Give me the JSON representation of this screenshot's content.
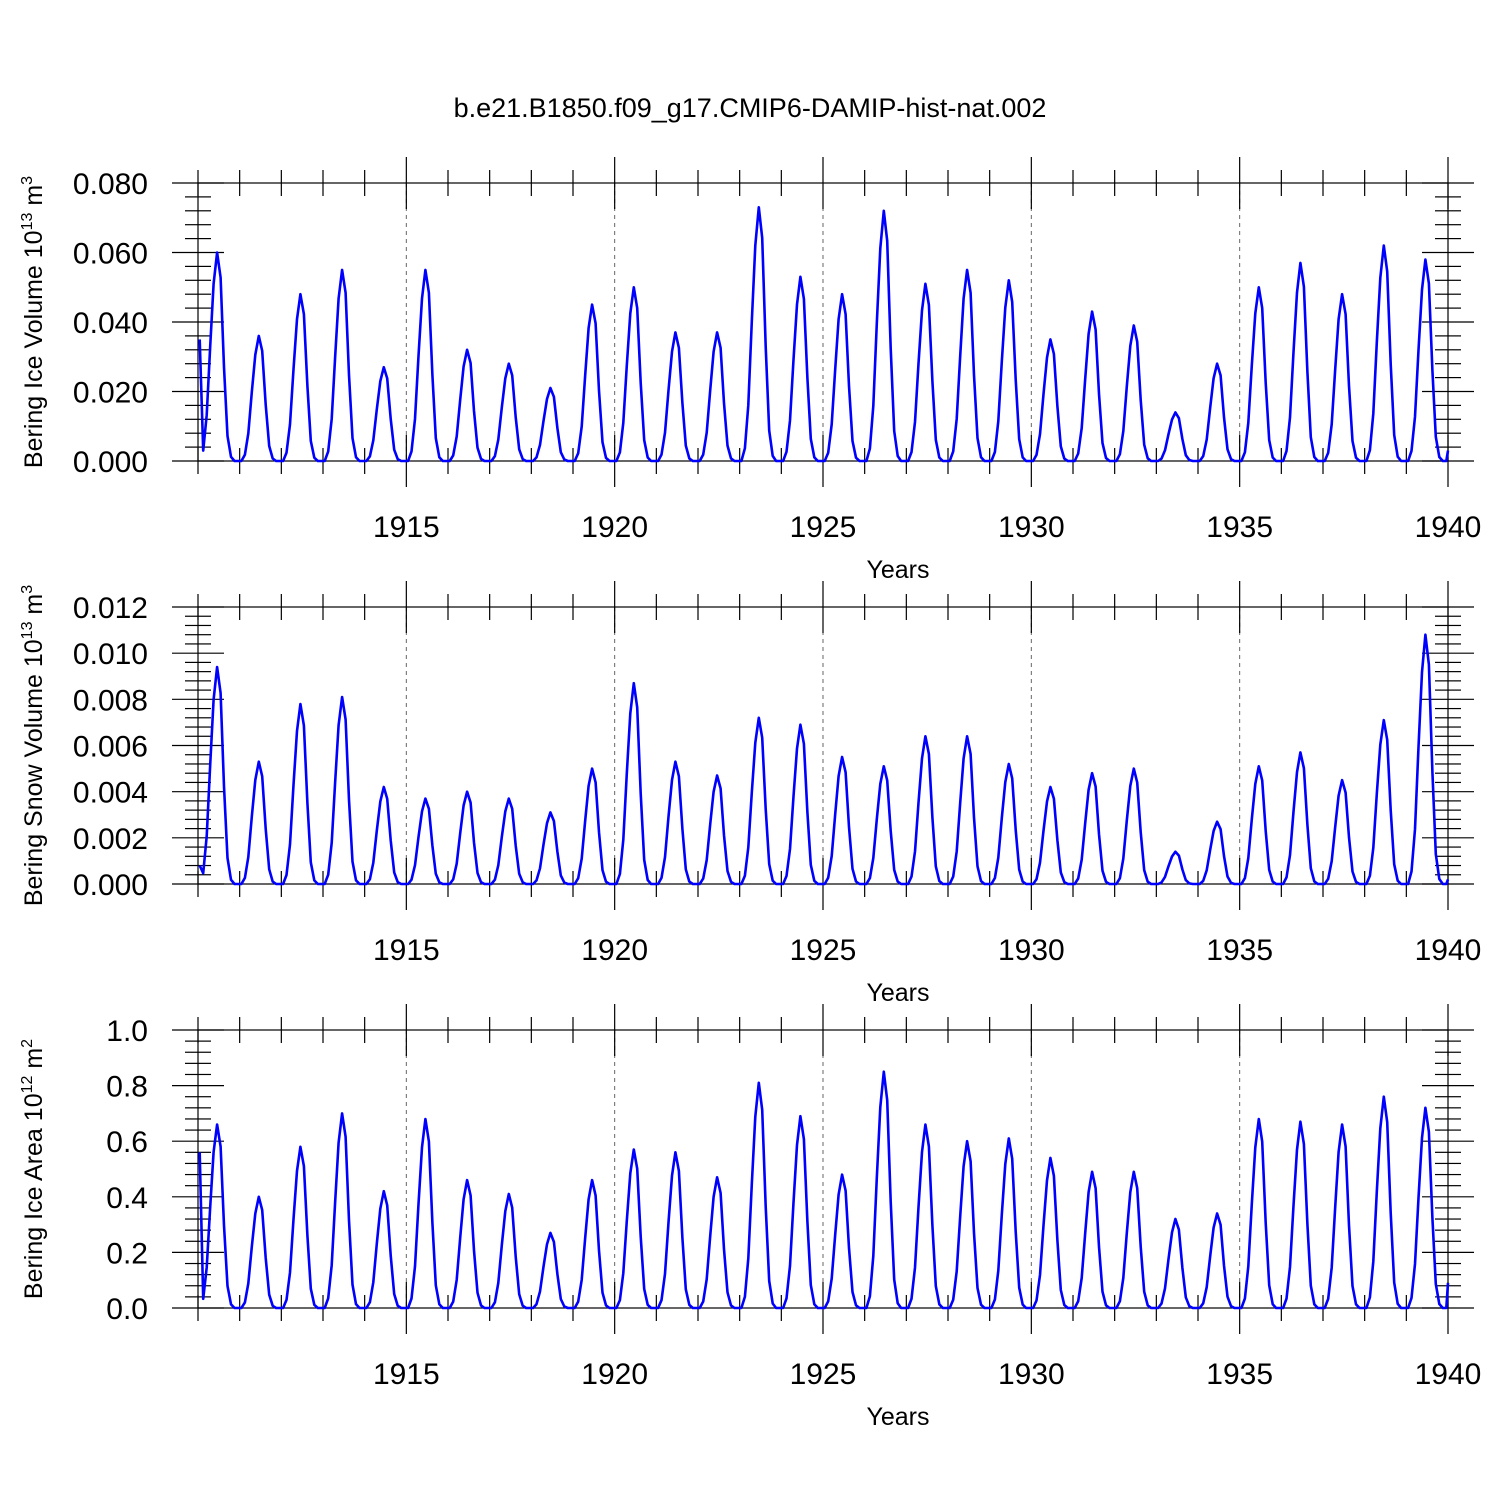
{
  "chart_data": {
    "type": "line",
    "title": "b.e21.B1850.f09_g17.CMIP6-DAMIP-hist-nat.002",
    "panels": [
      {
        "id": "ice-volume",
        "ylabel": {
          "prefix": "Bering Ice Volume 10",
          "exp": "13",
          "unit": " m",
          "unit_exp": "3"
        },
        "xlabel": "Years",
        "xlim": [
          1910,
          1940
        ],
        "ylim": [
          0,
          0.08
        ],
        "yticks": [
          0,
          0.02,
          0.04,
          0.06,
          0.08
        ],
        "ytick_labels": [
          "0.000",
          "0.020",
          "0.040",
          "0.060",
          "0.080"
        ],
        "xticks": [
          1915,
          1920,
          1925,
          1930,
          1935,
          1940
        ],
        "xtick_labels": [
          "1915",
          "1920",
          "1925",
          "1930",
          "1935",
          "1940"
        ],
        "peaks": [
          0.06,
          0.036,
          0.048,
          0.055,
          0.027,
          0.055,
          0.032,
          0.028,
          0.021,
          0.045,
          0.05,
          0.037,
          0.037,
          0.073,
          0.053,
          0.048,
          0.072,
          0.051,
          0.055,
          0.052,
          0.035,
          0.043,
          0.039,
          0.014,
          0.028,
          0.05,
          0.057,
          0.048,
          0.062,
          0.058
        ],
        "start_value": 0.035,
        "end_value": 0.003
      },
      {
        "id": "snow-volume",
        "ylabel": {
          "prefix": "Bering Snow Volume 10",
          "exp": "13",
          "unit": " m",
          "unit_exp": "3"
        },
        "xlabel": "Years",
        "xlim": [
          1910,
          1940
        ],
        "ylim": [
          0,
          0.012
        ],
        "yticks": [
          0,
          0.002,
          0.004,
          0.006,
          0.008,
          0.01,
          0.012
        ],
        "ytick_labels": [
          "0.000",
          "0.002",
          "0.004",
          "0.006",
          "0.008",
          "0.010",
          "0.012"
        ],
        "xticks": [
          1915,
          1920,
          1925,
          1930,
          1935,
          1940
        ],
        "xtick_labels": [
          "1915",
          "1920",
          "1925",
          "1930",
          "1935",
          "1940"
        ],
        "peaks": [
          0.0094,
          0.0053,
          0.0078,
          0.0081,
          0.0042,
          0.0037,
          0.004,
          0.0037,
          0.0031,
          0.005,
          0.0087,
          0.0053,
          0.0047,
          0.0072,
          0.0069,
          0.0055,
          0.0051,
          0.0064,
          0.0064,
          0.0052,
          0.0042,
          0.0048,
          0.005,
          0.0014,
          0.0027,
          0.0051,
          0.0057,
          0.0045,
          0.0071,
          0.0108
        ],
        "start_value": 0.0008,
        "end_value": 0.0002
      },
      {
        "id": "ice-area",
        "ylabel": {
          "prefix": "Bering Ice Area 10",
          "exp": "12",
          "unit": " m",
          "unit_exp": "2"
        },
        "xlabel": "Years",
        "xlim": [
          1910,
          1940
        ],
        "ylim": [
          0,
          1.0
        ],
        "yticks": [
          0,
          0.2,
          0.4,
          0.6,
          0.8,
          1.0
        ],
        "ytick_labels": [
          "0.0",
          "0.2",
          "0.4",
          "0.6",
          "0.8",
          "1.0"
        ],
        "xticks": [
          1915,
          1920,
          1925,
          1930,
          1935,
          1940
        ],
        "xtick_labels": [
          "1915",
          "1920",
          "1925",
          "1930",
          "1935",
          "1940"
        ],
        "peaks": [
          0.66,
          0.4,
          0.58,
          0.7,
          0.42,
          0.68,
          0.46,
          0.41,
          0.27,
          0.46,
          0.57,
          0.56,
          0.47,
          0.81,
          0.69,
          0.48,
          0.85,
          0.66,
          0.6,
          0.61,
          0.54,
          0.49,
          0.49,
          0.32,
          0.34,
          0.68,
          0.67,
          0.66,
          0.76,
          0.72
        ],
        "start_value": 0.56,
        "end_value": 0.09
      }
    ]
  }
}
